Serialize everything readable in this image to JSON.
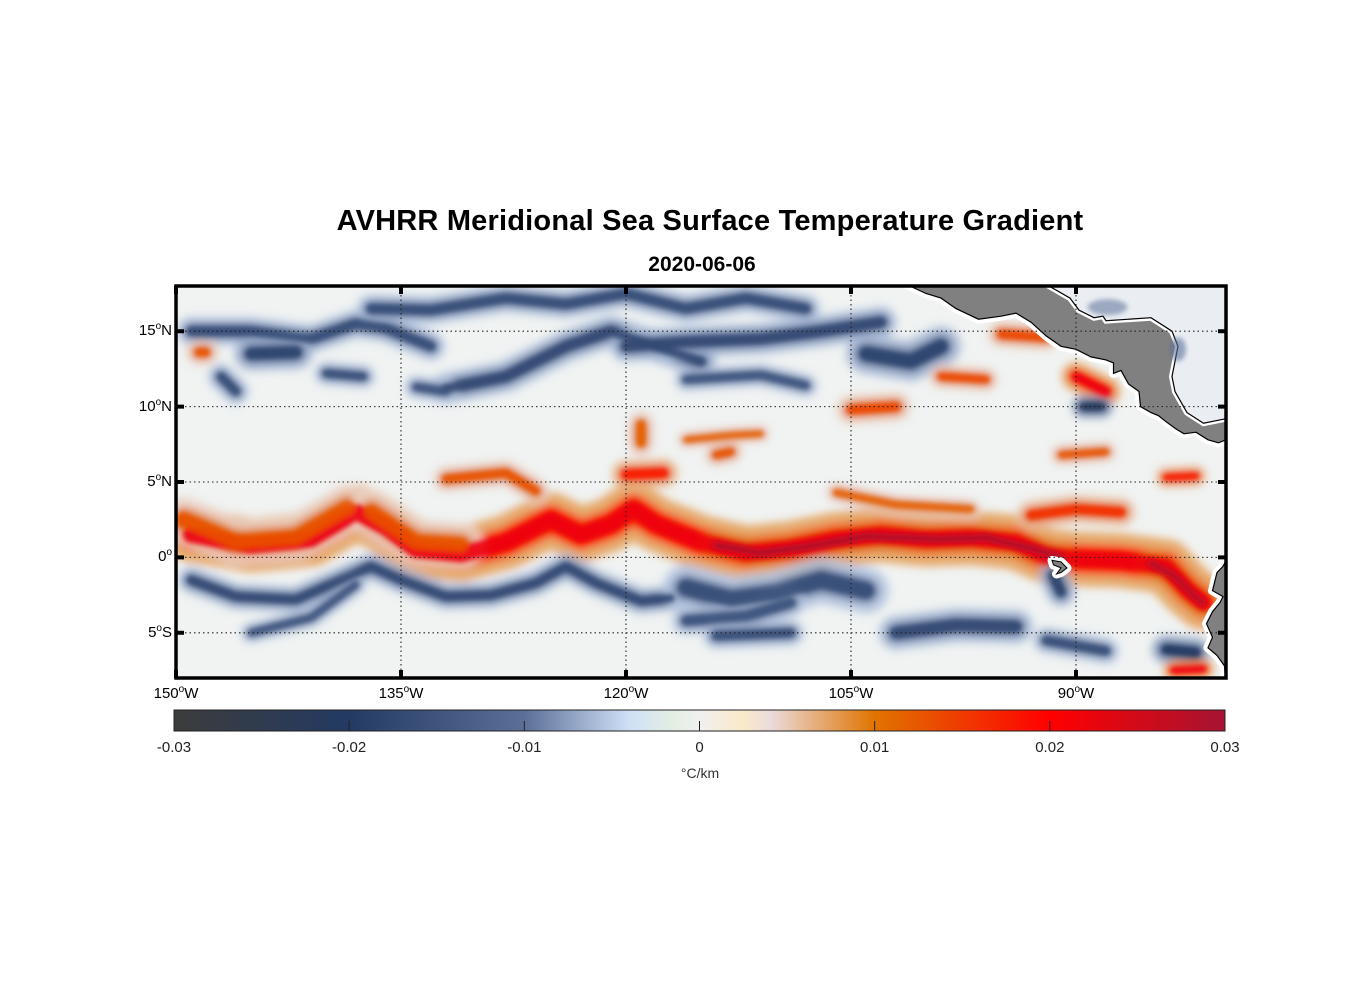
{
  "title": "AVHRR Meridional Sea Surface Temperature Gradient",
  "subtitle": "2020-06-06",
  "chart_data": {
    "type": "heatmap",
    "title": "AVHRR Meridional Sea Surface Temperature Gradient",
    "subtitle": "2020-06-06",
    "projection": "equirectangular",
    "lon_range": [
      -150,
      -80
    ],
    "lat_range": [
      -8,
      18
    ],
    "grid": true,
    "lat_ticks": [
      {
        "value": 15,
        "label": "15",
        "hemi": "N"
      },
      {
        "value": 10,
        "label": "10",
        "hemi": "N"
      },
      {
        "value": 5,
        "label": "5",
        "hemi": "N"
      },
      {
        "value": 0,
        "label": "0",
        "hemi": ""
      },
      {
        "value": -5,
        "label": "5",
        "hemi": "S"
      }
    ],
    "lon_ticks": [
      {
        "value": -150,
        "label": "150",
        "hemi": "W"
      },
      {
        "value": -135,
        "label": "135",
        "hemi": "W"
      },
      {
        "value": -120,
        "label": "120",
        "hemi": "W"
      },
      {
        "value": -105,
        "label": "105",
        "hemi": "W"
      },
      {
        "value": -90,
        "label": "90",
        "hemi": "W"
      }
    ],
    "degree_symbol": "o",
    "colorbar": {
      "range": [
        -0.03,
        0.03
      ],
      "ticks": [
        -0.03,
        -0.02,
        -0.01,
        0,
        0.01,
        0.02,
        0.03
      ],
      "tick_labels": [
        "-0.03",
        "-0.02",
        "-0.01",
        "0",
        "0.01",
        "0.02",
        "0.03"
      ],
      "unit_label": "°C/km",
      "orientation": "horizontal",
      "placement": "bottom",
      "colormap_stops": [
        {
          "v": -0.03,
          "color": "#3c3c3c"
        },
        {
          "v": -0.02,
          "color": "#233a63"
        },
        {
          "v": -0.01,
          "color": "#5b6f98"
        },
        {
          "v": -0.004,
          "color": "#cfe0f7"
        },
        {
          "v": -0.0015,
          "color": "#e3efe3"
        },
        {
          "v": 0,
          "color": "#f0f0f0"
        },
        {
          "v": 0.0025,
          "color": "#fbe9c9"
        },
        {
          "v": 0.004,
          "color": "#ebdcdc"
        },
        {
          "v": 0.01,
          "color": "#e07400"
        },
        {
          "v": 0.02,
          "color": "#ff0000"
        },
        {
          "v": 0.03,
          "color": "#a51432"
        }
      ]
    },
    "features": [
      {
        "name": "equatorial front (main band)",
        "value": 0.022,
        "path": [
          [
            -149,
            1.5
          ],
          [
            -145,
            0.8
          ],
          [
            -141,
            1.2
          ],
          [
            -138,
            3.0
          ],
          [
            -136,
            2.0
          ],
          [
            -134,
            0.5
          ],
          [
            -131,
            0.2
          ],
          [
            -128,
            1.0
          ],
          [
            -125,
            2.5
          ],
          [
            -123,
            1.5
          ],
          [
            -121,
            2.2
          ],
          [
            -119.5,
            3.2
          ],
          [
            -118,
            2.2
          ],
          [
            -115,
            1.0
          ],
          [
            -112,
            0.3
          ],
          [
            -109,
            0.6
          ],
          [
            -106,
            1.2
          ],
          [
            -103,
            1.5
          ],
          [
            -100,
            1.2
          ],
          [
            -97,
            1.3
          ],
          [
            -94,
            1.0
          ],
          [
            -92,
            0.1
          ],
          [
            -90,
            -0.1
          ],
          [
            -87,
            -0.2
          ],
          [
            -84,
            -0.6
          ],
          [
            -82.5,
            -2.2
          ],
          [
            -81.5,
            -3.0
          ]
        ],
        "width_deg": 1.9
      },
      {
        "name": "equatorial front core east",
        "value": 0.029,
        "path": [
          [
            -114,
            0.8
          ],
          [
            -111,
            0.3
          ],
          [
            -108,
            0.7
          ],
          [
            -104,
            1.4
          ],
          [
            -99,
            1.2
          ],
          [
            -96,
            1.3
          ],
          [
            -93,
            0.6
          ],
          [
            -91,
            0.0
          ]
        ],
        "width_deg": 0.9
      },
      {
        "name": "front core far east",
        "value": 0.028,
        "path": [
          [
            -85,
            -0.4
          ],
          [
            -83.5,
            -1.2
          ],
          [
            -82.3,
            -2.4
          ],
          [
            -81.6,
            -3.0
          ]
        ],
        "width_deg": 0.9
      },
      {
        "name": "front west orange part",
        "value": 0.013,
        "path": [
          [
            -149.5,
            2.5
          ],
          [
            -146,
            1.0
          ],
          [
            -142,
            1.3
          ],
          [
            -138.5,
            3.3
          ]
        ],
        "width_deg": 1.6
      },
      {
        "name": "front central orange",
        "value": 0.013,
        "path": [
          [
            -137,
            3.0
          ],
          [
            -134,
            1.0
          ],
          [
            -131,
            0.8
          ]
        ],
        "width_deg": 1.6
      },
      {
        "name": "south cold tongue band west",
        "value": -0.017,
        "path": [
          [
            -149,
            -1.5
          ],
          [
            -146,
            -2.6
          ],
          [
            -142,
            -2.8
          ],
          [
            -139,
            -1.5
          ],
          [
            -137,
            -0.6
          ],
          [
            -135,
            -1.5
          ],
          [
            -132,
            -2.6
          ],
          [
            -129,
            -2.5
          ],
          [
            -126,
            -1.7
          ],
          [
            -124,
            -0.6
          ],
          [
            -122,
            -1.7
          ],
          [
            -119,
            -2.9
          ],
          [
            -117,
            -2.7
          ]
        ],
        "width_deg": 0.9
      },
      {
        "name": "south cold band lower",
        "value": -0.015,
        "path": [
          [
            -145,
            -5.0
          ],
          [
            -141,
            -4.0
          ],
          [
            -138,
            -1.8
          ]
        ],
        "width_deg": 0.7
      },
      {
        "name": "south cold tongue central",
        "value": -0.016,
        "path": [
          [
            -116,
            -2.0
          ],
          [
            -113,
            -2.8
          ],
          [
            -110,
            -2.4
          ],
          [
            -107,
            -1.5
          ],
          [
            -104,
            -2.2
          ]
        ],
        "width_deg": 1.6
      },
      {
        "name": "south cold band central lower",
        "value": -0.015,
        "path": [
          [
            -116,
            -4.2
          ],
          [
            -112,
            -3.9
          ],
          [
            -109,
            -3.0
          ]
        ],
        "width_deg": 1.0
      },
      {
        "name": "south cold patch -108",
        "value": -0.016,
        "path": [
          [
            -114,
            -5.2
          ],
          [
            -109,
            -5.0
          ]
        ],
        "width_deg": 0.9
      },
      {
        "name": "south cold patch -97",
        "value": -0.017,
        "path": [
          [
            -102,
            -5.0
          ],
          [
            -98,
            -4.5
          ],
          [
            -94,
            -4.6
          ]
        ],
        "width_deg": 1.2
      },
      {
        "name": "south cold patch -90",
        "value": -0.016,
        "path": [
          [
            -92,
            -5.5
          ],
          [
            -88,
            -6.2
          ]
        ],
        "width_deg": 0.9
      },
      {
        "name": "south cold patch -92",
        "value": -0.018,
        "path": [
          [
            -91.5,
            -1.2
          ],
          [
            -91,
            -2.3
          ]
        ],
        "width_deg": 1.0
      },
      {
        "name": "south cold patch far east",
        "value": -0.02,
        "path": [
          [
            -84,
            -6.1
          ],
          [
            -82,
            -6.3
          ]
        ],
        "width_deg": 1.0
      },
      {
        "name": "south warm patch far east",
        "value": 0.022,
        "path": [
          [
            -83.5,
            -7.5
          ],
          [
            -81.5,
            -7.4
          ]
        ],
        "width_deg": 0.7
      },
      {
        "name": "north cold band 15N west",
        "value": -0.016,
        "path": [
          [
            -149,
            15.0
          ],
          [
            -145,
            15.0
          ],
          [
            -141,
            14.5
          ],
          [
            -138,
            15.5
          ],
          [
            -136,
            15.2
          ],
          [
            -133,
            14.0
          ]
        ],
        "width_deg": 1.0
      },
      {
        "name": "north cold blob 13N",
        "value": -0.018,
        "path": [
          [
            -145,
            13.5
          ],
          [
            -142,
            13.6
          ]
        ],
        "width_deg": 1.2
      },
      {
        "name": "north cold diagonal",
        "value": -0.017,
        "path": [
          [
            -132,
            11.2
          ],
          [
            -128,
            12.0
          ],
          [
            -124,
            14.0
          ],
          [
            -121,
            15.0
          ],
          [
            -118,
            14.0
          ],
          [
            -115,
            13.0
          ]
        ],
        "width_deg": 1.1
      },
      {
        "name": "north cold 17N band",
        "value": -0.016,
        "path": [
          [
            -137,
            16.5
          ],
          [
            -133,
            16.4
          ],
          [
            -128,
            17.2
          ],
          [
            -124,
            16.8
          ],
          [
            -120,
            17.5
          ],
          [
            -116,
            16.5
          ],
          [
            -112,
            17.2
          ],
          [
            -108,
            16.5
          ]
        ],
        "width_deg": 1.0
      },
      {
        "name": "north cold 14N central",
        "value": -0.017,
        "path": [
          [
            -120,
            14.0
          ],
          [
            -116,
            14.3
          ],
          [
            -111,
            14.5
          ],
          [
            -107,
            15.0
          ],
          [
            -103,
            15.6
          ]
        ],
        "width_deg": 1.1
      },
      {
        "name": "north cold east blobs",
        "value": -0.018,
        "path": [
          [
            -104,
            13.5
          ],
          [
            -101,
            13.0
          ],
          [
            -99,
            14.0
          ]
        ],
        "width_deg": 1.4
      },
      {
        "name": "north cold 12N",
        "value": -0.015,
        "path": [
          [
            -116,
            11.8
          ],
          [
            -111,
            12.1
          ],
          [
            -108,
            11.4
          ]
        ],
        "width_deg": 0.8
      },
      {
        "name": "north cold 11N west",
        "value": -0.016,
        "path": [
          [
            -147,
            12.0
          ],
          [
            -146,
            11.0
          ]
        ],
        "width_deg": 0.9
      },
      {
        "name": "north cold 12N -140",
        "value": -0.016,
        "path": [
          [
            -140,
            12.2
          ],
          [
            -137.5,
            12.0
          ]
        ],
        "width_deg": 0.8
      },
      {
        "name": "north cold 11N -133",
        "value": -0.015,
        "path": [
          [
            -134,
            11.3
          ],
          [
            -132,
            11.0
          ]
        ],
        "width_deg": 0.8
      },
      {
        "name": "north warm blob 13.5N west",
        "value": 0.013,
        "path": [
          [
            -148.5,
            13.6
          ],
          [
            -148,
            13.6
          ]
        ],
        "width_deg": 0.9
      },
      {
        "name": "north warm 10N -103",
        "value": 0.014,
        "path": [
          [
            -105,
            9.8
          ],
          [
            -102,
            10.0
          ]
        ],
        "width_deg": 1.0
      },
      {
        "name": "north warm 12N -97",
        "value": 0.014,
        "path": [
          [
            -99,
            12.0
          ],
          [
            -96,
            11.8
          ]
        ],
        "width_deg": 0.8
      },
      {
        "name": "north warm 8N -118",
        "value": 0.012,
        "path": [
          [
            -119,
            8.8
          ],
          [
            -119,
            7.6
          ]
        ],
        "width_deg": 1.0
      },
      {
        "name": "north warm 6N -119",
        "value": 0.018,
        "path": [
          [
            -120,
            5.5
          ],
          [
            -117.5,
            5.6
          ]
        ],
        "width_deg": 1.0
      },
      {
        "name": "north warm 5N -130",
        "value": 0.013,
        "path": [
          [
            -132,
            5.2
          ],
          [
            -128,
            5.6
          ],
          [
            -126,
            4.4
          ]
        ],
        "width_deg": 0.9
      },
      {
        "name": "north warm 9N -110",
        "value": 0.012,
        "path": [
          [
            -116,
            7.8
          ],
          [
            -113,
            8.1
          ],
          [
            -111,
            8.2
          ]
        ],
        "width_deg": 0.6
      },
      {
        "name": "north warm 7N -113",
        "value": 0.013,
        "path": [
          [
            -114,
            6.8
          ],
          [
            -113,
            7.0
          ]
        ],
        "width_deg": 0.8
      },
      {
        "name": "north warm 4N -98",
        "value": 0.012,
        "path": [
          [
            -106,
            4.3
          ],
          [
            -102,
            3.5
          ],
          [
            -97,
            3.2
          ]
        ],
        "width_deg": 0.7
      },
      {
        "name": "north warm 3N -92",
        "value": 0.016,
        "path": [
          [
            -93,
            2.8
          ],
          [
            -90,
            3.2
          ],
          [
            -87,
            3.0
          ]
        ],
        "width_deg": 1.0
      },
      {
        "name": "north warm coast 11N -90",
        "value": 0.022,
        "path": [
          [
            -90,
            12.0
          ],
          [
            -88,
            11.0
          ]
        ],
        "width_deg": 1.0
      },
      {
        "name": "north cold coast 10N -89",
        "value": -0.022,
        "path": [
          [
            -89.5,
            10.0
          ],
          [
            -88.3,
            10.0
          ]
        ],
        "width_deg": 0.8
      },
      {
        "name": "north warm coast 14N -95",
        "value": 0.014,
        "path": [
          [
            -95,
            14.8
          ],
          [
            -92,
            14.6
          ]
        ],
        "width_deg": 0.9
      },
      {
        "name": "north warm 7N -87",
        "value": 0.013,
        "path": [
          [
            -91,
            6.8
          ],
          [
            -88,
            7.0
          ]
        ],
        "width_deg": 0.7
      },
      {
        "name": "north warm 5N -83",
        "value": 0.018,
        "path": [
          [
            -84,
            5.3
          ],
          [
            -82,
            5.4
          ]
        ],
        "width_deg": 0.7
      }
    ],
    "land": [
      {
        "name": "Mexico / Central America",
        "color": "#808080"
      },
      {
        "name": "Galapagos",
        "color": "#808080"
      },
      {
        "name": "South America (Ecuador/Peru)",
        "color": "#808080"
      }
    ]
  }
}
